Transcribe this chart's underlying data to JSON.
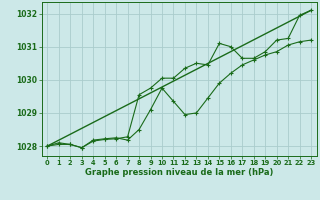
{
  "title": "Graphe pression niveau de la mer (hPa)",
  "background_color": "#cce8e8",
  "grid_color": "#aacccc",
  "line_color": "#1a6b1a",
  "xlim": [
    -0.5,
    23.5
  ],
  "ylim": [
    1027.7,
    1032.35
  ],
  "yticks": [
    1028,
    1029,
    1030,
    1031,
    1032
  ],
  "xticks": [
    0,
    1,
    2,
    3,
    4,
    5,
    6,
    7,
    8,
    9,
    10,
    11,
    12,
    13,
    14,
    15,
    16,
    17,
    18,
    19,
    20,
    21,
    22,
    23
  ],
  "series1_x": [
    0,
    1,
    2,
    3,
    4,
    5,
    6,
    7,
    8,
    9,
    10,
    11,
    12,
    13,
    14,
    15,
    16,
    17,
    18,
    19,
    20,
    21,
    22,
    23
  ],
  "series1_y": [
    1028.0,
    1028.1,
    1028.05,
    1027.95,
    1028.15,
    1028.2,
    1028.22,
    1028.28,
    1029.55,
    1029.75,
    1030.05,
    1030.05,
    1030.35,
    1030.5,
    1030.45,
    1031.1,
    1031.0,
    1030.65,
    1030.65,
    1030.85,
    1031.2,
    1031.25,
    1031.95,
    1032.1
  ],
  "series2_x": [
    0,
    1,
    2,
    3,
    4,
    5,
    6,
    7,
    8,
    9,
    10,
    11,
    12,
    13,
    14,
    15,
    16,
    17,
    18,
    19,
    20,
    21,
    22,
    23
  ],
  "series2_y": [
    1028.0,
    1028.05,
    1028.05,
    1027.95,
    1028.18,
    1028.22,
    1028.25,
    1028.18,
    1028.5,
    1029.1,
    1029.75,
    1029.35,
    1028.95,
    1029.0,
    1029.45,
    1029.9,
    1030.2,
    1030.45,
    1030.6,
    1030.75,
    1030.85,
    1031.05,
    1031.15,
    1031.2
  ],
  "series3_x": [
    0,
    23
  ],
  "series3_y": [
    1028.0,
    1032.1
  ]
}
